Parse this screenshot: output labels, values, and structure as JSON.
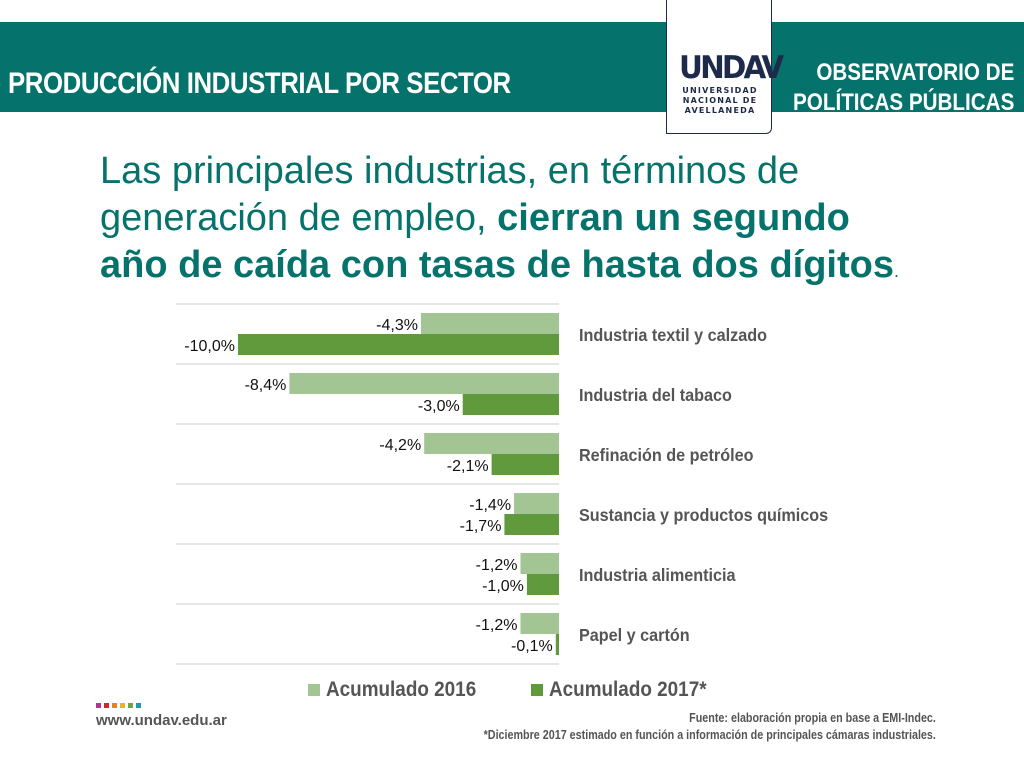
{
  "header": {
    "title": "PRODUCCIÓN INDUSTRIAL POR SECTOR",
    "observatorio_line1": "OBSERVATORIO DE",
    "observatorio_line2": "POLÍTICAS PÚBLICAS",
    "logo": {
      "mark": "UNDAV",
      "line1": "UNIVERSIDAD",
      "line2": "NACIONAL DE",
      "line3": "AVELLANEDA"
    },
    "colors": {
      "banner": "#05736b",
      "logo": "#1e2a4a"
    }
  },
  "headline": {
    "light_line1": "Las principales industrias, en términos de",
    "light_line2": "generación de empleo, ",
    "bold_part1": "cierran un segundo",
    "bold_part2": "año de caída con tasas de hasta dos dígitos",
    "end_dot": "."
  },
  "chart_data": {
    "type": "bar",
    "orientation": "horizontal",
    "title": "",
    "xlabel": "",
    "ylabel": "",
    "xlim": [
      -10,
      0
    ],
    "grid": false,
    "legend_position": "bottom",
    "categories": [
      "Industria textil y calzado",
      "Industria del tabaco",
      "Refinación de petróleo",
      "Sustancia y productos químicos",
      "Industria alimenticia",
      "Papel y cartón"
    ],
    "series": [
      {
        "name": "Acumulado 2016",
        "color": "#a3c593",
        "values": [
          -4.3,
          -8.4,
          -4.2,
          -1.4,
          -1.2,
          -1.2
        ],
        "labels": [
          "-4,3%",
          "-8,4%",
          "-4,2%",
          "-1,4%",
          "-1,2%",
          "-1,2%"
        ]
      },
      {
        "name": "Acumulado 2017*",
        "color": "#61993d",
        "values": [
          -10.0,
          -3.0,
          -2.1,
          -1.7,
          -1.0,
          -0.1
        ],
        "labels": [
          "-10,0%",
          "-3,0%",
          "-2,1%",
          "-1,7%",
          "-1,0%",
          "-0,1%"
        ]
      }
    ]
  },
  "footer": {
    "website": "www.undav.edu.ar",
    "dot_colors": [
      "#b0358f",
      "#d6232a",
      "#f07f1a",
      "#e8b31b",
      "#6ea53f",
      "#1c9bb0"
    ],
    "source_line1": "Fuente: elaboración propia en base a EMI-Indec.",
    "source_line2": "*Diciembre 2017 estimado en función a información de principales cámaras industriales."
  }
}
